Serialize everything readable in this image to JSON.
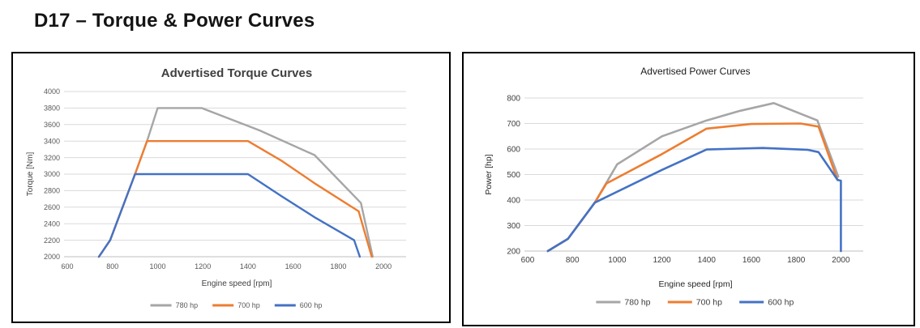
{
  "page": {
    "heading": "D17 – Torque & Power Curves"
  },
  "colors": {
    "series_780": "#a6a6a6",
    "series_700": "#ed7d31",
    "series_600": "#4472c4",
    "gridline": "#d9d9d9",
    "axis_line": "#bfbfbf"
  },
  "chart_data": [
    {
      "type": "line",
      "name": "torque-curves",
      "title": "Advertised Torque Curves",
      "xlabel": "Engine speed [rpm]",
      "ylabel": "Torque [Nm]",
      "xlim": [
        600,
        2100
      ],
      "ylim": [
        2000,
        4000
      ],
      "xticks": [
        600,
        800,
        1000,
        1200,
        1400,
        1600,
        1800,
        2000
      ],
      "yticks": [
        2000,
        2200,
        2400,
        2600,
        2800,
        3000,
        3200,
        3400,
        3600,
        3800,
        4000
      ],
      "grid": "horizontal",
      "legend_position": "bottom",
      "series": [
        {
          "name": "780 hp",
          "color": "#a6a6a6",
          "points": [
            [
              740,
              2000
            ],
            [
              790,
              2200
            ],
            [
              900,
              3000
            ],
            [
              953,
              3400
            ],
            [
              1000,
              3800
            ],
            [
              1195,
              3800
            ],
            [
              1450,
              3530
            ],
            [
              1695,
              3230
            ],
            [
              1900,
              2650
            ],
            [
              1952,
              2000
            ]
          ]
        },
        {
          "name": "700 hp",
          "color": "#ed7d31",
          "points": [
            [
              740,
              2000
            ],
            [
              790,
              2200
            ],
            [
              900,
              3000
            ],
            [
              953,
              3400
            ],
            [
              1400,
              3400
            ],
            [
              1550,
              3160
            ],
            [
              1700,
              2880
            ],
            [
              1890,
              2550
            ],
            [
              1948,
              2000
            ]
          ]
        },
        {
          "name": "600 hp",
          "color": "#4472c4",
          "points": [
            [
              740,
              2000
            ],
            [
              790,
              2200
            ],
            [
              900,
              3000
            ],
            [
              1400,
              3000
            ],
            [
              1550,
              2730
            ],
            [
              1700,
              2470
            ],
            [
              1870,
              2200
            ],
            [
              1895,
              2000
            ]
          ]
        }
      ]
    },
    {
      "type": "line",
      "name": "power-curves",
      "title": "Advertised Power Curves",
      "xlabel": "Engine speed [rpm]",
      "ylabel": "Power [hp]",
      "xlim": [
        600,
        2100
      ],
      "ylim": [
        200,
        800
      ],
      "xticks": [
        600,
        800,
        1000,
        1200,
        1400,
        1600,
        1800,
        2000
      ],
      "yticks": [
        200,
        300,
        400,
        500,
        600,
        700,
        800
      ],
      "grid": "horizontal",
      "legend_position": "bottom",
      "series": [
        {
          "name": "780 hp",
          "color": "#a6a6a6",
          "points": [
            [
              690,
              200
            ],
            [
              780,
              248
            ],
            [
              900,
              390
            ],
            [
              1000,
              540
            ],
            [
              1200,
              650
            ],
            [
              1400,
              712
            ],
            [
              1550,
              750
            ],
            [
              1700,
              780
            ],
            [
              1895,
              712
            ],
            [
              1988,
              492
            ]
          ]
        },
        {
          "name": "700 hp",
          "color": "#ed7d31",
          "points": [
            [
              690,
              200
            ],
            [
              780,
              248
            ],
            [
              900,
              390
            ],
            [
              952,
              465
            ],
            [
              1200,
              580
            ],
            [
              1400,
              680
            ],
            [
              1600,
              698
            ],
            [
              1820,
              700
            ],
            [
              1900,
              688
            ],
            [
              1985,
              478
            ]
          ]
        },
        {
          "name": "600 hp",
          "color": "#4472c4",
          "points": [
            [
              690,
              200
            ],
            [
              780,
              248
            ],
            [
              900,
              390
            ],
            [
              1200,
              518
            ],
            [
              1400,
              598
            ],
            [
              1650,
              604
            ],
            [
              1850,
              597
            ],
            [
              1900,
              588
            ],
            [
              1985,
              479
            ],
            [
              2000,
              476
            ],
            [
              2000,
              200
            ]
          ]
        }
      ]
    }
  ]
}
